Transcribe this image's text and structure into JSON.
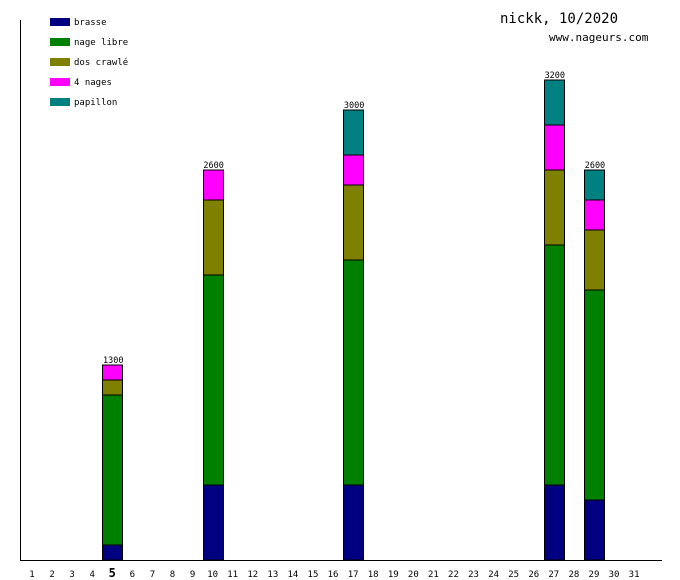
{
  "header": {
    "title": "nickk, 10/2020",
    "site": "www.nageurs.com"
  },
  "chart_data": {
    "type": "bar",
    "stacked": true,
    "ylim": [
      0,
      3600
    ],
    "grid": false,
    "legend_position": "top-left",
    "highlight_day": 5,
    "days": [
      1,
      2,
      3,
      4,
      5,
      6,
      7,
      8,
      9,
      10,
      11,
      12,
      13,
      14,
      15,
      16,
      17,
      18,
      19,
      20,
      21,
      22,
      23,
      24,
      25,
      26,
      27,
      28,
      29,
      30,
      31
    ],
    "series": [
      {
        "name": "brasse",
        "color": "#000080",
        "values": {
          "5": 100,
          "10": 500,
          "17": 500,
          "27": 500,
          "29": 400
        }
      },
      {
        "name": "nage libre",
        "color": "#008000",
        "values": {
          "5": 1000,
          "10": 1400,
          "17": 1500,
          "27": 1600,
          "29": 1400
        }
      },
      {
        "name": "dos crawlé",
        "color": "#808000",
        "values": {
          "5": 100,
          "10": 500,
          "17": 500,
          "27": 500,
          "29": 400
        }
      },
      {
        "name": "4 nages",
        "color": "#ff00ff",
        "values": {
          "5": 100,
          "10": 200,
          "17": 200,
          "27": 300,
          "29": 200
        }
      },
      {
        "name": "papillon",
        "color": "#008080",
        "values": {
          "17": 300,
          "27": 300,
          "29": 200
        }
      }
    ],
    "totals": {
      "5": "1300",
      "10": "2600",
      "17": "3000",
      "27": "3200",
      "29": "2600"
    }
  }
}
